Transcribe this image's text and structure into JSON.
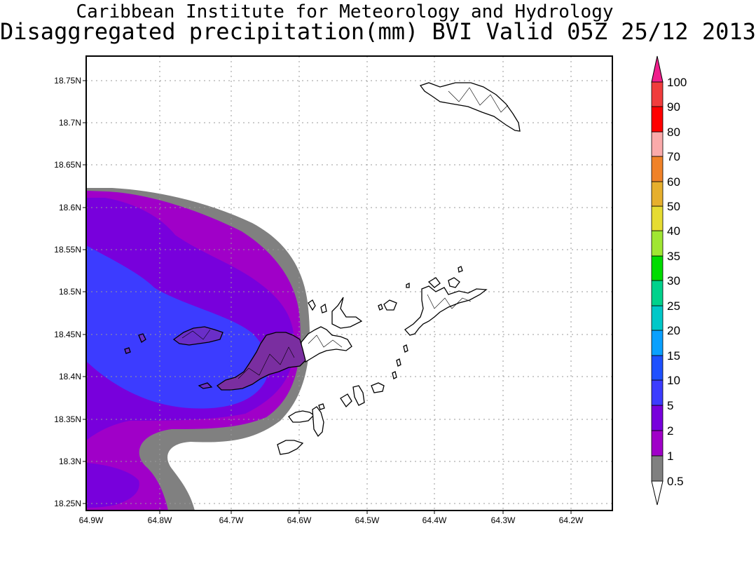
{
  "header": {
    "line1": "Caribbean Institute for Meteorology and Hydrology",
    "line2": "Disaggregated precipitation(mm) BVI Valid 05Z 25/12 2013"
  },
  "map": {
    "lon_range": [
      -64.9,
      -64.15
    ],
    "lat_range": [
      18.24,
      18.78
    ],
    "lon_ticks": [
      "64.9W",
      "64.8W",
      "64.7W",
      "64.6W",
      "64.5W",
      "64.4W",
      "64.3W",
      "64.2W"
    ],
    "lat_ticks": [
      "18.25N",
      "18.3N",
      "18.35N",
      "18.4N",
      "18.45N",
      "18.5N",
      "18.55N",
      "18.6N",
      "18.65N",
      "18.7N",
      "18.75N"
    ],
    "grid": "dotted"
  },
  "colorbar": {
    "labels": [
      "0.5",
      "1",
      "2",
      "5",
      "10",
      "15",
      "20",
      "25",
      "30",
      "35",
      "40",
      "50",
      "60",
      "70",
      "80",
      "90",
      "100"
    ],
    "colors": [
      "#808080",
      "#a000c8",
      "#7800dc",
      "#3c3cff",
      "#1e50ff",
      "#0aa0ff",
      "#00c8c8",
      "#00d28c",
      "#00dc00",
      "#a0e632",
      "#e6dc32",
      "#e6af2d",
      "#f08228",
      "#faaaaa",
      "#ff0000",
      "#f03c3c",
      "#f01e8c"
    ]
  }
}
